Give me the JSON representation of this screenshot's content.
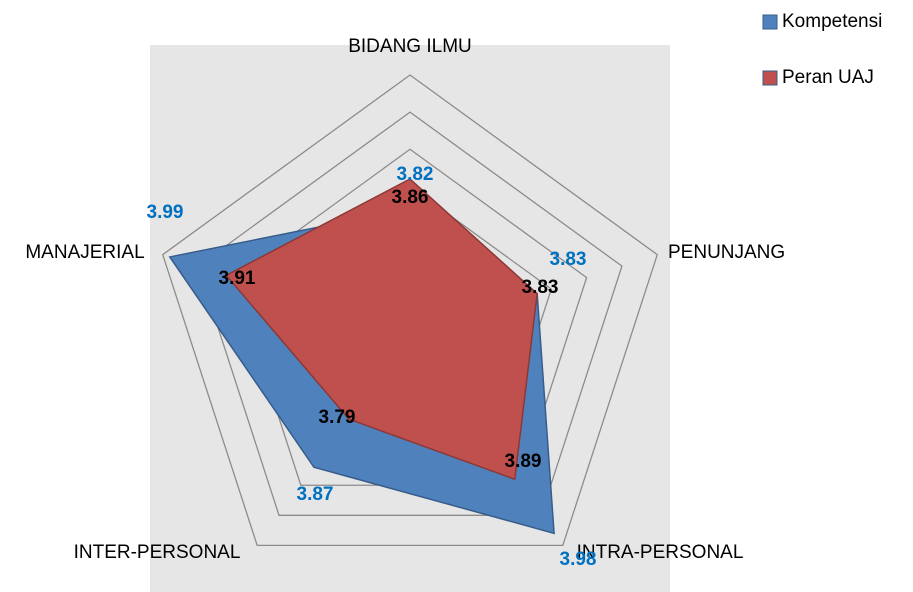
{
  "chart_data": {
    "type": "radar",
    "categories": [
      "BIDANG ILMU",
      "PENUNJANG",
      "INTRA-PERSONAL",
      "INTER-PERSONAL",
      "MANAJERIAL"
    ],
    "series": [
      {
        "name": "Kompetensi",
        "color": "#4f81bd",
        "label_color": "#0070c0",
        "values": [
          3.82,
          3.83,
          3.98,
          3.87,
          3.99
        ]
      },
      {
        "name": "Peran UAJ",
        "color": "#c0504d",
        "label_color": "#000000",
        "values": [
          3.86,
          3.83,
          3.89,
          3.79,
          3.91
        ]
      }
    ],
    "rlim": [
      3.65,
      4.0
    ],
    "rticks": [
      3.65,
      3.7,
      3.75,
      3.8,
      3.85,
      3.9,
      3.95,
      4.0
    ],
    "grid": true,
    "legend": "top-right"
  }
}
